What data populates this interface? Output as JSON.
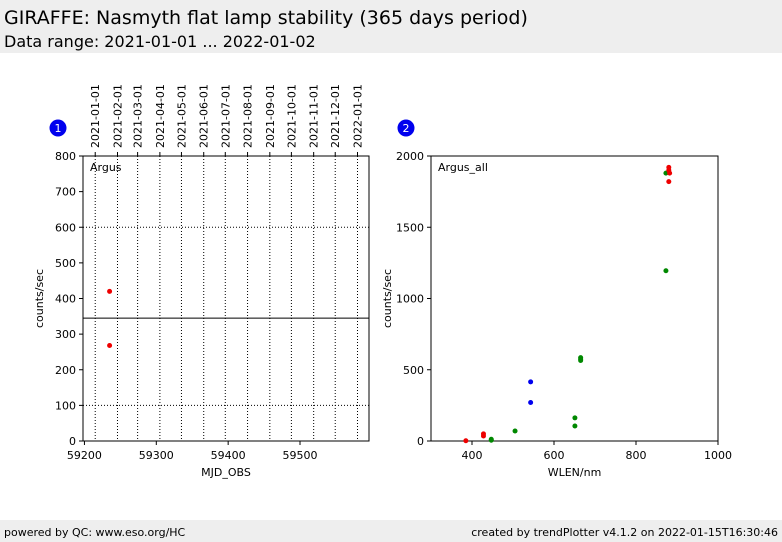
{
  "header": {
    "title": "GIRAFFE: Nasmyth flat lamp stability (365 days period)",
    "subtitle": "Data range: 2021-01-01 ... 2022-01-02"
  },
  "footer": {
    "left": "powered by QC: www.eso.org/HC",
    "right": "created by trendPlotter v4.1.2 on 2022-01-15T16:30:46"
  },
  "colors": {
    "red": "#ee0000",
    "green": "#008800",
    "blue": "#0000ee",
    "badge": "#0000ee"
  },
  "chart_data": [
    {
      "type": "scatter",
      "badge": "1",
      "inset_label": "Argus",
      "xlabel": "MJD_OBS",
      "ylabel": "counts/sec",
      "xlim": [
        59198,
        59596
      ],
      "ylim": [
        0,
        800
      ],
      "xticks": [
        59200,
        59300,
        59400,
        59500
      ],
      "yticks": [
        0,
        100,
        200,
        300,
        400,
        500,
        600,
        700,
        800
      ],
      "date_ticks": [
        {
          "label": "2021-01-01",
          "mjd": 59215
        },
        {
          "label": "2021-02-01",
          "mjd": 59246
        },
        {
          "label": "2021-03-01",
          "mjd": 59274
        },
        {
          "label": "2021-04-01",
          "mjd": 59305
        },
        {
          "label": "2021-05-01",
          "mjd": 59335
        },
        {
          "label": "2021-06-01",
          "mjd": 59366
        },
        {
          "label": "2021-07-01",
          "mjd": 59396
        },
        {
          "label": "2021-08-01",
          "mjd": 59427
        },
        {
          "label": "2021-09-01",
          "mjd": 59458
        },
        {
          "label": "2021-10-01",
          "mjd": 59488
        },
        {
          "label": "2021-11-01",
          "mjd": 59519
        },
        {
          "label": "2021-12-01",
          "mjd": 59549
        },
        {
          "label": "2022-01-01",
          "mjd": 59580
        }
      ],
      "hlines": [
        {
          "y": 100,
          "style": "dotted"
        },
        {
          "y": 345,
          "style": "solid"
        },
        {
          "y": 600,
          "style": "dotted"
        }
      ],
      "points": [
        {
          "x": 59235,
          "y": 420,
          "color": "red"
        },
        {
          "x": 59235,
          "y": 268,
          "color": "red"
        }
      ]
    },
    {
      "type": "scatter",
      "badge": "2",
      "inset_label": "Argus_all",
      "xlabel": "WLEN/nm",
      "ylabel": "counts/sec",
      "xlim": [
        300,
        1000
      ],
      "ylim": [
        0,
        2000
      ],
      "xticks": [
        400,
        600,
        800,
        1000
      ],
      "yticks": [
        0,
        500,
        1000,
        1500,
        2000
      ],
      "points": [
        {
          "x": 385,
          "y": 2,
          "color": "red"
        },
        {
          "x": 428,
          "y": 50,
          "color": "red"
        },
        {
          "x": 428,
          "y": 35,
          "color": "red"
        },
        {
          "x": 447,
          "y": 12,
          "color": "green"
        },
        {
          "x": 447,
          "y": 5,
          "color": "green"
        },
        {
          "x": 505,
          "y": 70,
          "color": "green"
        },
        {
          "x": 543,
          "y": 415,
          "color": "blue"
        },
        {
          "x": 543,
          "y": 270,
          "color": "blue"
        },
        {
          "x": 651,
          "y": 162,
          "color": "green"
        },
        {
          "x": 651,
          "y": 105,
          "color": "green"
        },
        {
          "x": 665,
          "y": 585,
          "color": "green"
        },
        {
          "x": 665,
          "y": 575,
          "color": "green"
        },
        {
          "x": 665,
          "y": 565,
          "color": "green"
        },
        {
          "x": 873,
          "y": 1880,
          "color": "green"
        },
        {
          "x": 873,
          "y": 1195,
          "color": "green"
        },
        {
          "x": 880,
          "y": 1920,
          "color": "red"
        },
        {
          "x": 880,
          "y": 1900,
          "color": "red"
        },
        {
          "x": 882,
          "y": 1880,
          "color": "red"
        },
        {
          "x": 880,
          "y": 1820,
          "color": "red"
        }
      ]
    }
  ]
}
